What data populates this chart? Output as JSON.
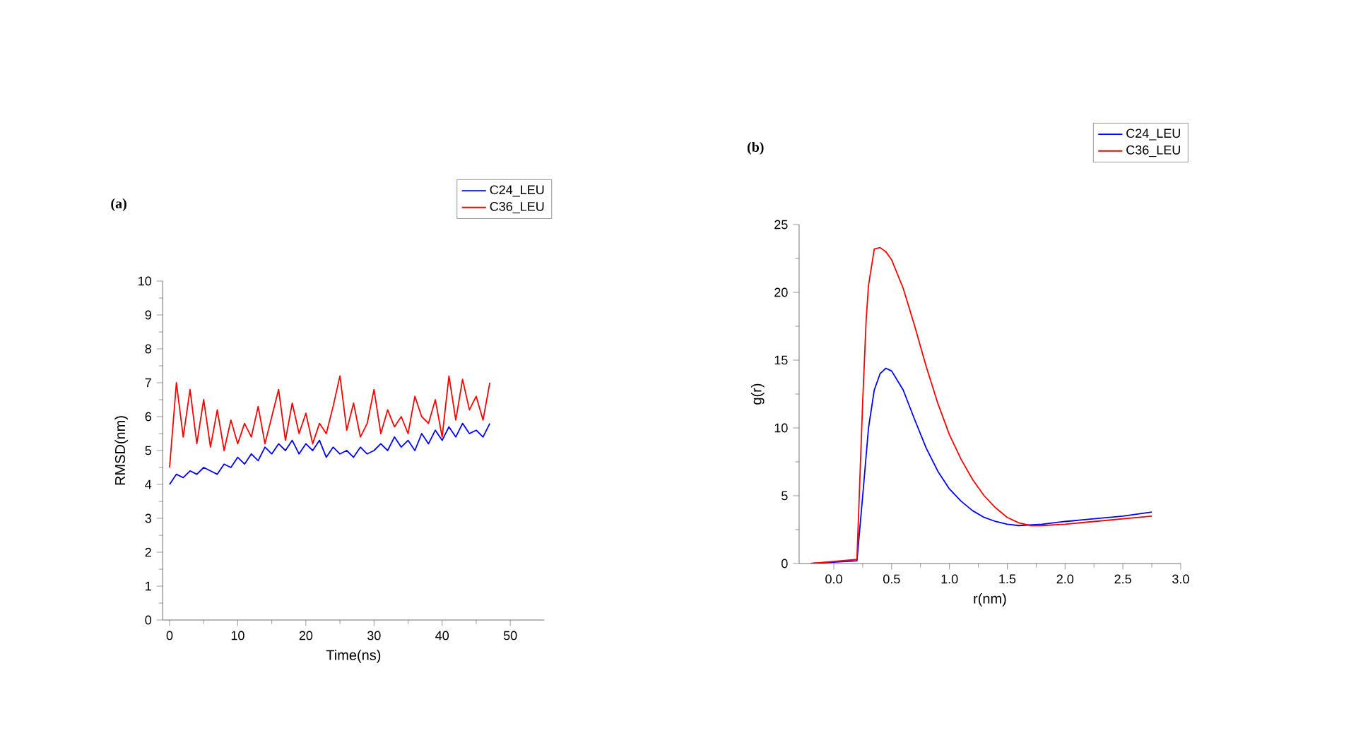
{
  "chart_data": [
    {
      "type": "line",
      "title": "(a)",
      "xlabel": "Time(ns)",
      "ylabel": "RMSD(nm)",
      "xlim": [
        -1,
        55
      ],
      "xticks": [
        0,
        10,
        20,
        30,
        40,
        50
      ],
      "ylim": [
        0,
        10
      ],
      "yticks": [
        0,
        1,
        2,
        3,
        4,
        5,
        6,
        7,
        8,
        9,
        10
      ],
      "legend": "top right",
      "grid": false,
      "x": [
        0,
        1,
        2,
        3,
        4,
        5,
        6,
        7,
        8,
        9,
        10,
        11,
        12,
        13,
        14,
        15,
        16,
        17,
        18,
        19,
        20,
        21,
        22,
        23,
        24,
        25,
        26,
        27,
        28,
        29,
        30,
        31,
        32,
        33,
        34,
        35,
        36,
        37,
        38,
        39,
        40,
        41,
        42,
        43,
        44,
        45,
        46,
        47
      ],
      "series": [
        {
          "name": "C24_LEU",
          "color": "#0000ff",
          "values": [
            4.0,
            4.3,
            4.2,
            4.4,
            4.3,
            4.5,
            4.4,
            4.3,
            4.6,
            4.5,
            4.8,
            4.6,
            4.9,
            4.7,
            5.1,
            4.9,
            5.2,
            5.0,
            5.3,
            4.9,
            5.2,
            5.0,
            5.3,
            4.8,
            5.1,
            4.9,
            5.0,
            4.8,
            5.1,
            4.9,
            5.0,
            5.2,
            5.0,
            5.4,
            5.1,
            5.3,
            5.0,
            5.5,
            5.2,
            5.6,
            5.3,
            5.7,
            5.4,
            5.8,
            5.5,
            5.6,
            5.4,
            5.8
          ]
        },
        {
          "name": "C36_LEU",
          "color": "#ff0000",
          "values": [
            4.5,
            7.0,
            5.4,
            6.8,
            5.2,
            6.5,
            5.1,
            6.2,
            5.0,
            5.9,
            5.2,
            5.8,
            5.4,
            6.3,
            5.2,
            6.0,
            6.8,
            5.3,
            6.4,
            5.5,
            6.1,
            5.2,
            5.8,
            5.5,
            6.3,
            7.2,
            5.6,
            6.4,
            5.4,
            5.8,
            6.8,
            5.5,
            6.2,
            5.7,
            6.0,
            5.5,
            6.6,
            6.0,
            5.8,
            6.5,
            5.4,
            7.2,
            5.9,
            7.1,
            6.2,
            6.6,
            5.9,
            7.0
          ]
        }
      ]
    },
    {
      "type": "line",
      "title": "(b)",
      "xlabel": "r(nm)",
      "ylabel": "g(r)",
      "xlim": [
        -0.3,
        3.0
      ],
      "xticks": [
        {
          "value": 0,
          "label": "0.0"
        },
        0.5,
        {
          "value": 1,
          "label": "1.0"
        },
        1.5,
        {
          "value": 2,
          "label": "2.0"
        },
        2.5,
        {
          "value": 3,
          "label": "3.0"
        }
      ],
      "ylim": [
        0,
        25
      ],
      "yticks": [
        0,
        5,
        10,
        15,
        20,
        25
      ],
      "legend": "top right",
      "grid": false,
      "series": [
        {
          "name": "C24_LEU",
          "color": "#0000ff",
          "x": [
            -0.2,
            0.2,
            0.25,
            0.3,
            0.35,
            0.4,
            0.45,
            0.5,
            0.6,
            0.7,
            0.8,
            0.9,
            1.0,
            1.1,
            1.2,
            1.3,
            1.4,
            1.5,
            1.6,
            1.8,
            2.0,
            2.25,
            2.5,
            2.75
          ],
          "values": [
            0,
            0.2,
            5,
            10,
            12.8,
            14,
            14.4,
            14.2,
            12.8,
            10.6,
            8.5,
            6.8,
            5.5,
            4.6,
            3.9,
            3.4,
            3.1,
            2.9,
            2.8,
            2.9,
            3.1,
            3.3,
            3.5,
            3.8
          ]
        },
        {
          "name": "C36_LEU",
          "color": "#ff0000",
          "x": [
            -0.2,
            0.2,
            0.25,
            0.28,
            0.3,
            0.35,
            0.4,
            0.45,
            0.5,
            0.6,
            0.7,
            0.8,
            0.9,
            1.0,
            1.1,
            1.2,
            1.3,
            1.4,
            1.5,
            1.6,
            1.7,
            1.8,
            2.0,
            2.25,
            2.5,
            2.75
          ],
          "values": [
            0,
            0.3,
            12,
            18,
            20.5,
            23.2,
            23.3,
            23,
            22.4,
            20.3,
            17.5,
            14.5,
            11.8,
            9.5,
            7.7,
            6.2,
            5.0,
            4.1,
            3.4,
            3.0,
            2.8,
            2.8,
            2.9,
            3.1,
            3.3,
            3.5
          ]
        }
      ]
    }
  ]
}
